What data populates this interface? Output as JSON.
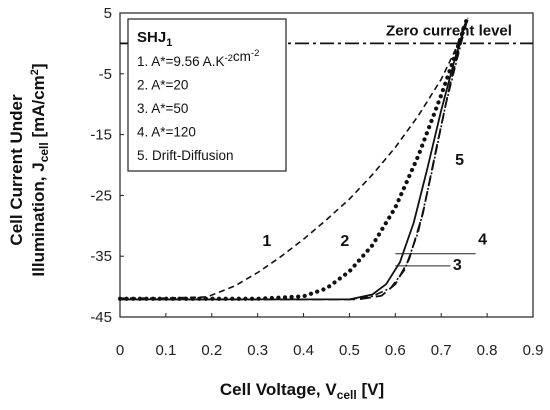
{
  "chart_data": {
    "type": "line",
    "xlabel_main": "Cell Voltage, V",
    "xlabel_sub": "cell",
    "xlabel_unit": " [V]",
    "ylabel_line1": "Cell Current Under",
    "ylabel_line2_main": "Illumination, J",
    "ylabel_line2_sub": "cell",
    "ylabel_line2_unit": " [mA/cm",
    "ylabel_line2_sup": "2",
    "ylabel_line2_end": "]",
    "xlim": [
      0,
      0.9
    ],
    "ylim": [
      -45,
      5
    ],
    "xticks": [
      "0",
      "0.1",
      "0.2",
      "0.3",
      "0.4",
      "0.5",
      "0.6",
      "0.7",
      "0.8",
      "0.9"
    ],
    "yticks": [
      "5",
      "-5",
      "-15",
      "-25",
      "-35",
      "-45"
    ],
    "grid": false,
    "legend": {
      "position": "top-left",
      "title_main": "SHJ",
      "title_sub": "1",
      "entries": [
        {
          "parts": [
            {
              "t": "1. A*=9.56 A.K"
            },
            {
              "t": "-2",
              "sup": true
            },
            {
              "t": "cm"
            },
            {
              "t": "-2",
              "sup": true
            }
          ]
        },
        {
          "parts": [
            {
              "t": "2. A*=20"
            }
          ]
        },
        {
          "parts": [
            {
              "t": "3. A*=50"
            }
          ]
        },
        {
          "parts": [
            {
              "t": "4. A*=120"
            }
          ]
        },
        {
          "parts": [
            {
              "t": "5. Drift-Diffusion"
            }
          ]
        }
      ]
    },
    "reference_line": {
      "label": "Zero current level",
      "y": 0
    },
    "series": [
      {
        "id": "1",
        "style": "dashed",
        "x": [
          0.0,
          0.1,
          0.19,
          0.25,
          0.3,
          0.35,
          0.4,
          0.45,
          0.5,
          0.55,
          0.6,
          0.65,
          0.7,
          0.73,
          0.755
        ],
        "y": [
          -41.9,
          -41.9,
          -41.7,
          -39.9,
          -37.7,
          -35.1,
          -32.2,
          -29.0,
          -25.6,
          -21.6,
          -17.1,
          -11.9,
          -5.9,
          -1.2,
          3.8
        ]
      },
      {
        "id": "2",
        "style": "dotted",
        "x": [
          0.0,
          0.3,
          0.4,
          0.45,
          0.5,
          0.55,
          0.6,
          0.65,
          0.7,
          0.73,
          0.755
        ],
        "y": [
          -42.0,
          -42.0,
          -41.6,
          -40.3,
          -37.5,
          -33.2,
          -27.0,
          -18.5,
          -8.5,
          -2.0,
          3.8
        ]
      },
      {
        "id": "3",
        "style": "solid",
        "x": [
          0.0,
          0.5,
          0.55,
          0.58,
          0.61,
          0.64,
          0.67,
          0.7,
          0.73,
          0.755
        ],
        "y": [
          -42.1,
          -42.1,
          -41.3,
          -39.6,
          -36.0,
          -29.5,
          -20.5,
          -11.0,
          -2.5,
          3.8
        ]
      },
      {
        "id": "4",
        "style": "long-dash",
        "x": [
          0.0,
          0.52,
          0.57,
          0.6,
          0.63,
          0.66,
          0.69,
          0.72,
          0.745,
          0.76
        ],
        "y": [
          -42.1,
          -42.1,
          -41.5,
          -39.6,
          -35.5,
          -28.0,
          -17.0,
          -6.5,
          1.0,
          4.5
        ]
      },
      {
        "id": "5",
        "style": "dash-dot",
        "x": [
          0.0,
          0.5,
          0.55,
          0.59,
          0.62,
          0.65,
          0.68,
          0.71,
          0.74,
          0.758
        ],
        "y": [
          -42.1,
          -42.1,
          -41.6,
          -40.2,
          -37.3,
          -31.0,
          -21.0,
          -10.0,
          -1.0,
          4.2
        ]
      }
    ],
    "curve_labels": [
      {
        "text": "1",
        "x": 0.32,
        "y": -33.3
      },
      {
        "text": "2",
        "x": 0.49,
        "y": -33.3
      },
      {
        "text": "3",
        "x": 0.735,
        "y": -37.3
      },
      {
        "text": "4",
        "x": 0.79,
        "y": -33.1
      },
      {
        "text": "5",
        "x": 0.74,
        "y": -20.0
      }
    ],
    "leaders": [
      {
        "to": "3",
        "from": [
          0.6,
          -36.6
        ],
        "to_pt": [
          0.72,
          -36.6
        ]
      },
      {
        "to": "4",
        "from": [
          0.6,
          -34.6
        ],
        "to_pt": [
          0.775,
          -34.6
        ]
      }
    ]
  }
}
